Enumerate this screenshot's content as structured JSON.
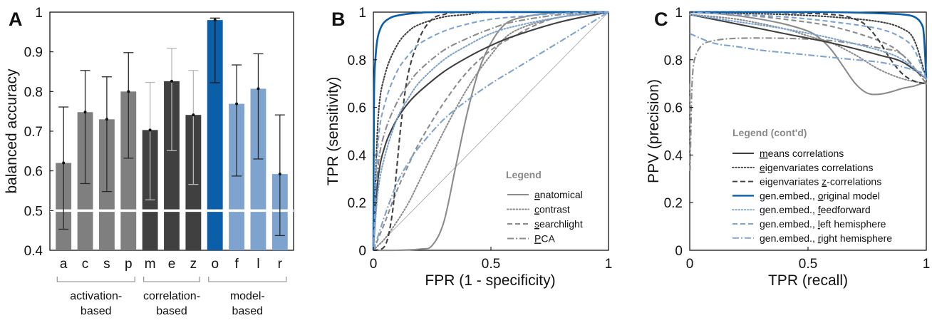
{
  "chart_data": [
    {
      "panel": "A",
      "type": "bar",
      "ylabel": "balanced accuracy",
      "ylim": [
        0.4,
        1.0
      ],
      "yticks": [
        "0.4",
        "0.5",
        "0.6",
        "0.7",
        "0.8",
        "0.9",
        "1"
      ],
      "chance_line": 0.5,
      "categories": [
        "a",
        "c",
        "s",
        "p",
        "m",
        "e",
        "z",
        "o",
        "f",
        "l",
        "r"
      ],
      "values": [
        0.62,
        0.748,
        0.73,
        0.8,
        0.703,
        0.826,
        0.741,
        0.98,
        0.769,
        0.807,
        0.592
      ],
      "error_low": [
        0.453,
        0.568,
        0.548,
        0.632,
        0.527,
        0.651,
        0.566,
        0.822,
        0.587,
        0.63,
        0.437
      ],
      "error_high": [
        0.761,
        0.853,
        0.837,
        0.898,
        0.823,
        0.909,
        0.853,
        0.985,
        0.867,
        0.895,
        0.741
      ],
      "bar_colors": [
        "#7f7f7f",
        "#7f7f7f",
        "#7f7f7f",
        "#7f7f7f",
        "#404040",
        "#404040",
        "#404040",
        "#0a5fa8",
        "#7ea3cf",
        "#7ea3cf",
        "#7ea3cf"
      ],
      "groups": [
        {
          "label": "activation-based",
          "lines": [
            "activation-",
            "based"
          ],
          "from": 0,
          "to": 3
        },
        {
          "label": "correlation-based",
          "lines": [
            "correlation-",
            "based"
          ],
          "from": 4,
          "to": 6
        },
        {
          "label": "model-based",
          "lines": [
            "model-",
            "based"
          ],
          "from": 7,
          "to": 10
        }
      ]
    },
    {
      "panel": "B",
      "type": "line",
      "xlabel": "FPR (1 - specificity)",
      "ylabel": "TPR (sensitivity)",
      "xlim": [
        0,
        1
      ],
      "ylim": [
        0,
        1
      ],
      "xticks": [
        "0",
        "0.5",
        "1"
      ],
      "yticks": [
        "0",
        "0.2",
        "0.4",
        "0.6",
        "0.8",
        "1"
      ],
      "legend_title": "Legend",
      "legend_position": "bottom-right",
      "legend": [
        {
          "label": "anatomical",
          "underline": "a",
          "rest": "natomical",
          "color": "#8c8c8c",
          "style": "solid"
        },
        {
          "label": "contrast",
          "underline": "c",
          "rest": "ontrast",
          "color": "#8c8c8c",
          "style": "dotted"
        },
        {
          "label": "searchlight",
          "underline": "s",
          "rest": "earchlight",
          "color": "#8c8c8c",
          "style": "dashed"
        },
        {
          "label": "PCA",
          "underline": "P",
          "rest": "CA",
          "color": "#8c8c8c",
          "style": "dashdot"
        }
      ],
      "series": [
        {
          "ref": "diagonal",
          "color": "#a0a0a0",
          "style": "thin",
          "x": [
            0,
            1
          ],
          "y": [
            0,
            1
          ]
        },
        {
          "ref": "anatomical",
          "color": "#8c8c8c",
          "style": "solid",
          "x": [
            0,
            0.1,
            0.2,
            0.25,
            0.3,
            0.35,
            0.4,
            0.45,
            0.5,
            0.55,
            0.6,
            0.7,
            0.8,
            0.9,
            1.0
          ],
          "y": [
            0,
            0.0,
            0.005,
            0.02,
            0.12,
            0.35,
            0.58,
            0.76,
            0.87,
            0.94,
            0.97,
            0.99,
            1.0,
            1.0,
            1.0
          ]
        },
        {
          "ref": "contrast",
          "color": "#8c8c8c",
          "style": "dotted",
          "x": [
            0,
            0.02,
            0.05,
            0.1,
            0.15,
            0.2,
            0.3,
            0.4,
            0.5,
            0.6,
            0.8,
            1.0
          ],
          "y": [
            0,
            0.02,
            0.05,
            0.12,
            0.2,
            0.3,
            0.5,
            0.68,
            0.82,
            0.92,
            0.98,
            1.0
          ]
        },
        {
          "ref": "searchlight",
          "color": "#8c8c8c",
          "style": "dashed",
          "x": [
            0,
            0.05,
            0.1,
            0.15,
            0.2,
            0.3,
            0.4,
            0.5,
            0.6,
            0.7,
            0.8,
            1.0
          ],
          "y": [
            0,
            0.12,
            0.25,
            0.36,
            0.46,
            0.62,
            0.75,
            0.84,
            0.9,
            0.95,
            0.98,
            1.0
          ]
        },
        {
          "ref": "PCA",
          "color": "#8c8c8c",
          "style": "dashdot",
          "x": [
            0,
            0.02,
            0.05,
            0.1,
            0.15,
            0.2,
            0.3,
            0.4,
            0.5,
            0.6,
            0.8,
            1.0
          ],
          "y": [
            0,
            0.35,
            0.5,
            0.62,
            0.7,
            0.76,
            0.84,
            0.89,
            0.93,
            0.96,
            0.99,
            1.0
          ]
        },
        {
          "ref": "means correlations",
          "color": "#404040",
          "style": "solid",
          "x": [
            0,
            0.02,
            0.05,
            0.1,
            0.15,
            0.2,
            0.3,
            0.4,
            0.5,
            0.6,
            0.8,
            1.0
          ],
          "y": [
            0,
            0.3,
            0.44,
            0.55,
            0.62,
            0.67,
            0.75,
            0.81,
            0.86,
            0.9,
            0.96,
            1.0
          ]
        },
        {
          "ref": "eigenvariates correlations",
          "color": "#404040",
          "style": "dotted",
          "x": [
            0,
            0.02,
            0.05,
            0.1,
            0.15,
            0.2,
            0.3,
            0.4,
            0.5,
            1.0
          ],
          "y": [
            0,
            0.55,
            0.74,
            0.86,
            0.92,
            0.95,
            0.98,
            0.99,
            1.0,
            1.0
          ]
        },
        {
          "ref": "eigenvariates z-correlations",
          "color": "#404040",
          "style": "dashed",
          "x": [
            0,
            0.05,
            0.08,
            0.1,
            0.12,
            0.15,
            0.2,
            0.25,
            0.3,
            0.4,
            1.0
          ],
          "y": [
            0,
            0.02,
            0.15,
            0.35,
            0.55,
            0.75,
            0.9,
            0.97,
            0.99,
            1.0,
            1.0
          ]
        },
        {
          "ref": "gen.embed., original model",
          "color": "#0a5fa8",
          "style": "solid",
          "x": [
            0,
            0.003,
            0.01,
            0.02,
            0.04,
            0.07,
            0.1,
            0.15,
            0.2,
            0.3,
            1.0
          ],
          "y": [
            0,
            0.65,
            0.82,
            0.9,
            0.95,
            0.975,
            0.985,
            0.993,
            0.997,
            1.0,
            1.0
          ]
        },
        {
          "ref": "gen.embed., feedforward",
          "color": "#7ea3cf",
          "style": "dotted",
          "x": [
            0,
            0.02,
            0.05,
            0.1,
            0.15,
            0.2,
            0.3,
            0.4,
            0.5,
            0.6,
            0.8,
            1.0
          ],
          "y": [
            0,
            0.25,
            0.4,
            0.55,
            0.64,
            0.71,
            0.8,
            0.86,
            0.91,
            0.94,
            0.98,
            1.0
          ]
        },
        {
          "ref": "gen.embed., left hemisphere",
          "color": "#7ea3cf",
          "style": "dashed",
          "x": [
            0,
            0.02,
            0.05,
            0.1,
            0.15,
            0.2,
            0.3,
            0.4,
            0.5,
            0.6,
            0.8,
            1.0
          ],
          "y": [
            0,
            0.45,
            0.62,
            0.75,
            0.82,
            0.87,
            0.92,
            0.95,
            0.97,
            0.98,
            0.995,
            1.0
          ]
        },
        {
          "ref": "gen.embed., right hemisphere",
          "color": "#7ea3cf",
          "style": "dashdot",
          "x": [
            0,
            0.02,
            0.05,
            0.1,
            0.15,
            0.2,
            0.3,
            0.4,
            0.5,
            0.6,
            0.7,
            0.8,
            0.9,
            1.0
          ],
          "y": [
            0,
            0.06,
            0.15,
            0.28,
            0.37,
            0.44,
            0.55,
            0.63,
            0.7,
            0.76,
            0.82,
            0.88,
            0.94,
            1.0
          ]
        }
      ]
    },
    {
      "panel": "C",
      "type": "line",
      "xlabel": "TPR (recall)",
      "ylabel": "PPV (precision)",
      "xlim": [
        0,
        1
      ],
      "ylim": [
        0,
        1
      ],
      "xticks": [
        "0",
        "0.5",
        "1"
      ],
      "yticks": [
        "0",
        "0.2",
        "0.4",
        "0.6",
        "0.8",
        "1"
      ],
      "legend_title": "Legend (cont'd)",
      "legend_position": "bottom-right",
      "legend": [
        {
          "label": "means correlations",
          "underline": "m",
          "rest": "eans correlations",
          "color": "#404040",
          "style": "solid"
        },
        {
          "label": "eigenvariates correlations",
          "underline": "e",
          "rest": "igenvariates correlations",
          "color": "#404040",
          "style": "dotted"
        },
        {
          "label": "eigenvariates z-correlations",
          "prefix": "eigenvariates ",
          "underline": "z",
          "rest": "-correlations",
          "color": "#404040",
          "style": "dashed"
        },
        {
          "label": "gen.embed., original model",
          "prefix": "gen.embed., ",
          "underline": "o",
          "rest": "riginal model",
          "color": "#0a5fa8",
          "style": "solid"
        },
        {
          "label": "gen.embed., feedforward",
          "prefix": "gen.embed., ",
          "underline": "f",
          "rest": "eedforward",
          "color": "#7ea3cf",
          "style": "dotted"
        },
        {
          "label": "gen.embed., left hemisphere",
          "prefix": "gen.embed., ",
          "underline": "l",
          "rest": "eft hemisphere",
          "color": "#7ea3cf",
          "style": "dashed"
        },
        {
          "label": "gen.embed., right hemisphere",
          "prefix": "gen.embed., ",
          "underline": "r",
          "rest": "ight hemisphere",
          "color": "#7ea3cf",
          "style": "dashdot"
        }
      ],
      "series": [
        {
          "ref": "anatomical",
          "color": "#8c8c8c",
          "style": "solid",
          "x": [
            0,
            0.1,
            0.2,
            0.3,
            0.4,
            0.5,
            0.55,
            0.6,
            0.65,
            0.7,
            0.75,
            0.8,
            0.85,
            0.9,
            0.95,
            0.98,
            1.0
          ],
          "y": [
            1.0,
            0.995,
            0.985,
            0.97,
            0.95,
            0.92,
            0.89,
            0.84,
            0.77,
            0.7,
            0.66,
            0.655,
            0.665,
            0.68,
            0.69,
            0.7,
            0.7
          ]
        },
        {
          "ref": "contrast",
          "color": "#8c8c8c",
          "style": "dotted",
          "x": [
            0,
            0.2,
            0.4,
            0.5,
            0.6,
            0.7,
            0.8,
            0.9,
            1.0
          ],
          "y": [
            0.99,
            0.97,
            0.93,
            0.9,
            0.87,
            0.82,
            0.76,
            0.72,
            0.7
          ]
        },
        {
          "ref": "searchlight",
          "color": "#8c8c8c",
          "style": "dashed",
          "x": [
            0,
            0.2,
            0.4,
            0.6,
            0.8,
            0.9,
            1.0
          ],
          "y": [
            1.0,
            0.99,
            0.97,
            0.94,
            0.88,
            0.82,
            0.7
          ]
        },
        {
          "ref": "PCA",
          "color": "#8c8c8c",
          "style": "dashdot",
          "x": [
            0,
            0.001,
            0.003,
            0.006,
            0.01,
            0.02,
            0.05,
            0.1,
            0.2,
            0.4,
            0.6,
            0.8,
            0.9,
            1.0
          ],
          "y": [
            0.7,
            0.35,
            0.42,
            0.56,
            0.7,
            0.8,
            0.86,
            0.88,
            0.89,
            0.89,
            0.88,
            0.85,
            0.82,
            0.7
          ]
        },
        {
          "ref": "means correlations",
          "color": "#404040",
          "style": "solid",
          "x": [
            0,
            0.2,
            0.4,
            0.6,
            0.8,
            0.9,
            1.0
          ],
          "y": [
            0.99,
            0.95,
            0.91,
            0.87,
            0.82,
            0.79,
            0.72
          ]
        },
        {
          "ref": "eigenvariates correlations",
          "color": "#404040",
          "style": "dotted",
          "x": [
            0,
            0.2,
            0.4,
            0.6,
            0.8,
            0.9,
            0.95,
            1.0
          ],
          "y": [
            1.0,
            0.995,
            0.99,
            0.98,
            0.96,
            0.93,
            0.88,
            0.72
          ]
        },
        {
          "ref": "eigenvariates z-correlations",
          "color": "#404040",
          "style": "dashed",
          "x": [
            0,
            0.3,
            0.6,
            0.7,
            0.75,
            0.8,
            0.85,
            0.9,
            0.95,
            1.0
          ],
          "y": [
            1.0,
            1.0,
            0.99,
            0.97,
            0.94,
            0.88,
            0.8,
            0.74,
            0.71,
            0.7
          ]
        },
        {
          "ref": "gen.embed., original model",
          "color": "#0a5fa8",
          "style": "solid",
          "x": [
            0,
            0.3,
            0.6,
            0.8,
            0.9,
            0.95,
            0.98,
            0.99,
            1.0
          ],
          "y": [
            1.0,
            1.0,
            1.0,
            0.995,
            0.99,
            0.98,
            0.95,
            0.9,
            0.72
          ]
        },
        {
          "ref": "gen.embed., feedforward",
          "color": "#7ea3cf",
          "style": "dotted",
          "x": [
            0,
            0.2,
            0.4,
            0.6,
            0.8,
            0.9,
            1.0
          ],
          "y": [
            0.99,
            0.96,
            0.93,
            0.89,
            0.84,
            0.8,
            0.72
          ]
        },
        {
          "ref": "gen.embed., left hemisphere",
          "color": "#7ea3cf",
          "style": "dashed",
          "x": [
            0,
            0.2,
            0.4,
            0.6,
            0.8,
            0.9,
            0.95,
            1.0
          ],
          "y": [
            1.0,
            0.99,
            0.98,
            0.96,
            0.93,
            0.89,
            0.84,
            0.72
          ]
        },
        {
          "ref": "gen.embed., right hemisphere",
          "color": "#7ea3cf",
          "style": "dashdot",
          "x": [
            0,
            0.1,
            0.2,
            0.3,
            0.4,
            0.5,
            0.6,
            0.7,
            0.8,
            0.9,
            1.0
          ],
          "y": [
            0.91,
            0.87,
            0.855,
            0.84,
            0.83,
            0.82,
            0.81,
            0.8,
            0.79,
            0.77,
            0.74
          ]
        }
      ]
    }
  ]
}
